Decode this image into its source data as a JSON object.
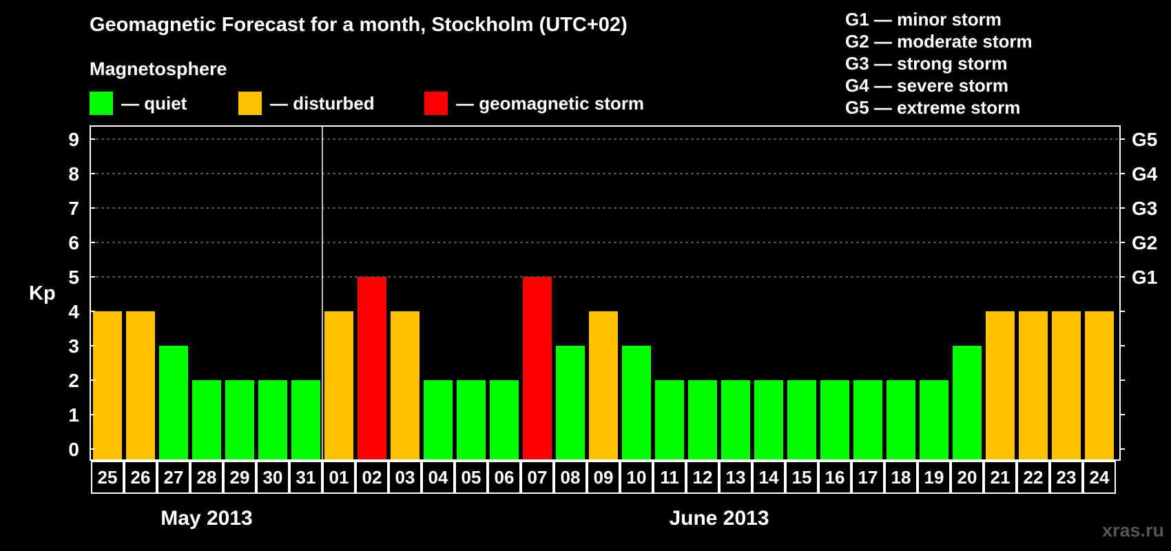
{
  "header": {
    "title": "Geomagnetic Forecast for a month, Stockholm (UTC+02)",
    "subtitle": "Magnetosphere",
    "legend": [
      {
        "label": "— quiet",
        "color": "#00ff00"
      },
      {
        "label": "— disturbed",
        "color": "#ffc000"
      },
      {
        "label": "— geomagnetic storm",
        "color": "#ff0000"
      }
    ]
  },
  "storm_scale": [
    "G1 — minor storm",
    "G2 — moderate storm",
    "G3 — strong storm",
    "G4 — severe storm",
    "G5 — extreme storm"
  ],
  "footer": {
    "credit": "xras.ru"
  },
  "chart_data": {
    "type": "bar",
    "ylabel": "Kp",
    "ylim": [
      0,
      9
    ],
    "yticks": [
      "0",
      "1",
      "2",
      "3",
      "4",
      "5",
      "6",
      "7",
      "8",
      "9"
    ],
    "right_ticks": [
      {
        "value": 5,
        "label": "G1"
      },
      {
        "value": 6,
        "label": "G2"
      },
      {
        "value": 7,
        "label": "G3"
      },
      {
        "value": 8,
        "label": "G4"
      },
      {
        "value": 9,
        "label": "G5"
      }
    ],
    "grid": "dashed horizontal at Kp 5-9",
    "categories": [
      "25",
      "26",
      "27",
      "28",
      "29",
      "30",
      "31",
      "01",
      "02",
      "03",
      "04",
      "05",
      "06",
      "07",
      "08",
      "09",
      "10",
      "11",
      "12",
      "13",
      "14",
      "15",
      "16",
      "17",
      "18",
      "19",
      "20",
      "21",
      "22",
      "23",
      "24"
    ],
    "values": [
      4,
      4,
      3,
      2,
      2,
      2,
      2,
      4,
      5,
      4,
      2,
      2,
      2,
      5,
      3,
      4,
      3,
      2,
      2,
      2,
      2,
      2,
      2,
      2,
      2,
      2,
      3,
      4,
      4,
      4,
      4
    ],
    "status": [
      "disturbed",
      "disturbed",
      "quiet",
      "quiet",
      "quiet",
      "quiet",
      "quiet",
      "disturbed",
      "storm",
      "disturbed",
      "quiet",
      "quiet",
      "quiet",
      "storm",
      "quiet",
      "disturbed",
      "quiet",
      "quiet",
      "quiet",
      "quiet",
      "quiet",
      "quiet",
      "quiet",
      "quiet",
      "quiet",
      "quiet",
      "quiet",
      "disturbed",
      "disturbed",
      "disturbed",
      "disturbed"
    ],
    "colors": {
      "quiet": "#00ff00",
      "disturbed": "#ffc000",
      "storm": "#ff0000"
    },
    "months": [
      {
        "label": "May 2013",
        "from": 0,
        "to": 6
      },
      {
        "label": "June 2013",
        "from": 7,
        "to": 30
      }
    ]
  }
}
